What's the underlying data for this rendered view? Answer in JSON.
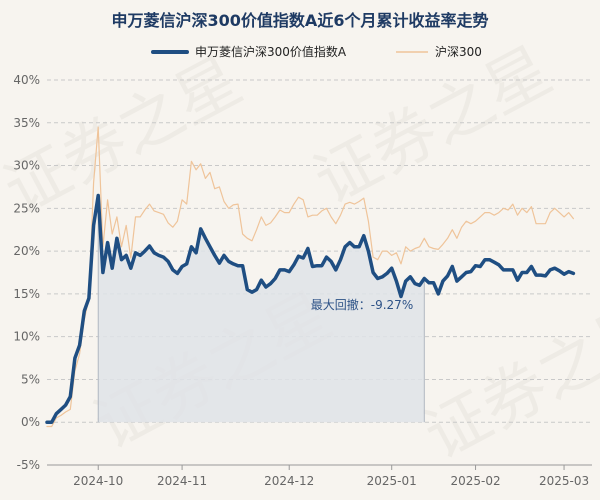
{
  "chart_data": {
    "type": "line",
    "title": "申万菱信沪深300价值指数A近6个月累计收益率走势",
    "watermark": "证券之星",
    "ylim": [
      -5,
      40
    ],
    "yticks": [
      -5,
      0,
      5,
      10,
      15,
      20,
      25,
      30,
      35,
      40
    ],
    "ytick_suffix": "%",
    "xlim": [
      0,
      117
    ],
    "xticks": [
      {
        "x": 11,
        "label": "2024-10"
      },
      {
        "x": 29,
        "label": "2024-11"
      },
      {
        "x": 52,
        "label": "2024-12"
      },
      {
        "x": 74,
        "label": "2025-01"
      },
      {
        "x": 92,
        "label": "2025-02"
      },
      {
        "x": 111,
        "label": "2025-03"
      }
    ],
    "grid": true,
    "legend_position": "top-center",
    "colors": {
      "fund": "#1f4e82",
      "index": "#efc49a",
      "shade": "#dfe3e8",
      "annotation": "#2d5287"
    },
    "annotation": {
      "text": "最大回撤：-9.27%",
      "peak_x": 11,
      "trough_x": 81
    },
    "series": [
      {
        "name": "申万菱信沪深300价值指数A",
        "color": "#1f4e82",
        "values": [
          0,
          0,
          1,
          1.5,
          2,
          3,
          7.5,
          9,
          13,
          14.5,
          23,
          26.5,
          17.5,
          21,
          18,
          21.5,
          19,
          19.5,
          18,
          19.8,
          19.5,
          20,
          20.6,
          19.8,
          19.5,
          19.3,
          18.8,
          17.8,
          17.4,
          18.2,
          18.5,
          20.5,
          19.8,
          22.6,
          21.5,
          20.5,
          19.5,
          18.6,
          19.5,
          18.8,
          18.5,
          18.3,
          18.3,
          15.5,
          15.2,
          15.5,
          16.6,
          15.8,
          16.2,
          16.8,
          17.8,
          17.8,
          17.6,
          18.4,
          19.4,
          19.2,
          20.3,
          18.2,
          18.3,
          18.3,
          19.3,
          18.8,
          17.8,
          19,
          20.5,
          21,
          20.5,
          20.5,
          21.8,
          20,
          17.5,
          16.8,
          17,
          17.4,
          18,
          16.5,
          14.7,
          16.5,
          17,
          16.2,
          16,
          16.8,
          16.3,
          16.3,
          15,
          16.5,
          17.1,
          18.2,
          16.5,
          17,
          17.5,
          17.6,
          18.3,
          18.2,
          19,
          19,
          18.7,
          18.4,
          17.8,
          17.8,
          17.8,
          16.6,
          17.5,
          17.5,
          18.2,
          17.2,
          17.2,
          17.1,
          17.8,
          18,
          17.7,
          17.3,
          17.6,
          17.4
        ]
      },
      {
        "name": "沪深300",
        "color": "#efc49a",
        "values": [
          -0.5,
          -0.5,
          0.5,
          0.8,
          1.2,
          1.5,
          6,
          8,
          12,
          14.5,
          28,
          34.5,
          20.5,
          26,
          22,
          24,
          20.5,
          23,
          19.2,
          24,
          24,
          24.8,
          25.5,
          24.7,
          24.5,
          24.3,
          23.3,
          22.8,
          23.5,
          26,
          25.5,
          30.5,
          29.5,
          30.2,
          28.5,
          29.2,
          27.3,
          27.5,
          25.8,
          25,
          25.4,
          25.5,
          22,
          21.5,
          21.2,
          22.5,
          24,
          23,
          23.3,
          24,
          24.8,
          24.5,
          24.5,
          25.5,
          26.3,
          26,
          24,
          24.2,
          24.2,
          24.7,
          25,
          24,
          23.2,
          24.2,
          25.5,
          25.7,
          25.5,
          25.8,
          26.2,
          23.5,
          19.3,
          19,
          20,
          20,
          19.5,
          19.8,
          18.5,
          20.5,
          20,
          20.3,
          20.5,
          21.5,
          20.5,
          20.3,
          20.2,
          20.8,
          21.5,
          22.5,
          21.5,
          22.8,
          23.5,
          23.2,
          23.5,
          24,
          24.5,
          24.5,
          24.2,
          24.5,
          25,
          24.8,
          25.5,
          24.2,
          25,
          24.5,
          25.2,
          23.2,
          23.2,
          23.2,
          24.5,
          25,
          24.5,
          24,
          24.5,
          23.8
        ]
      }
    ]
  }
}
